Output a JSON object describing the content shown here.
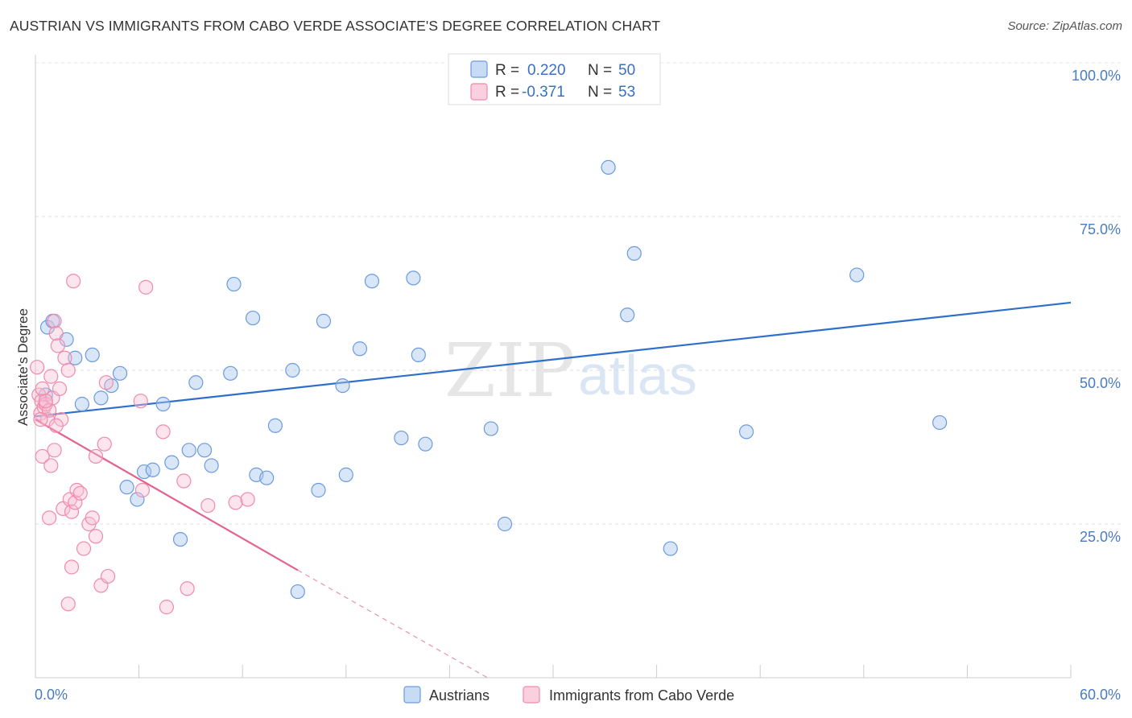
{
  "title": "AUSTRIAN VS IMMIGRANTS FROM CABO VERDE ASSOCIATE'S DEGREE CORRELATION CHART",
  "source": "Source: ZipAtlas.com",
  "watermark": {
    "zip": "ZIP",
    "atlas": "atlas"
  },
  "legend": {
    "r_label": "R =",
    "n_label": "N =",
    "items": [
      {
        "r": "0.220",
        "n": "50"
      },
      {
        "r": "-0.371",
        "n": "53"
      }
    ]
  },
  "chart_data": {
    "type": "scatter",
    "title": "AUSTRIAN VS IMMIGRANTS FROM CABO VERDE ASSOCIATE'S DEGREE CORRELATION CHART",
    "xlabel": "",
    "ylabel": "Associate's Degree",
    "xlim": [
      0,
      60
    ],
    "ylim": [
      0,
      100
    ],
    "x_tick_labels": [
      "0.0%",
      "60.0%"
    ],
    "y_ticks": [
      25,
      50,
      75,
      100
    ],
    "y_tick_labels": [
      "25.0%",
      "50.0%",
      "75.0%",
      "100.0%"
    ],
    "grid": true,
    "legend_position": "bottom",
    "colors": {
      "austrians": "#6a9be0",
      "cabo_verde": "#f08aab",
      "austrians_line": "#2f6fcc",
      "cabo_verde_line": "#e2638e"
    },
    "series": [
      {
        "name": "Austrians",
        "trend": {
          "x": [
            0,
            60
          ],
          "y": [
            42.5,
            61
          ]
        },
        "points": [
          [
            0.6,
            46
          ],
          [
            0.7,
            57
          ],
          [
            1.0,
            58
          ],
          [
            1.8,
            55
          ],
          [
            2.3,
            52
          ],
          [
            2.7,
            44.5
          ],
          [
            3.3,
            52.5
          ],
          [
            3.8,
            45.5
          ],
          [
            4.4,
            47.5
          ],
          [
            4.9,
            49.5
          ],
          [
            5.3,
            31
          ],
          [
            5.9,
            29
          ],
          [
            6.3,
            33.5
          ],
          [
            6.8,
            33.8
          ],
          [
            7.4,
            44.5
          ],
          [
            7.9,
            35
          ],
          [
            8.4,
            22.5
          ],
          [
            8.9,
            37
          ],
          [
            9.3,
            48
          ],
          [
            9.8,
            37
          ],
          [
            10.2,
            34.5
          ],
          [
            11.3,
            49.5
          ],
          [
            11.5,
            64
          ],
          [
            12.6,
            58.5
          ],
          [
            12.8,
            33
          ],
          [
            13.4,
            32.5
          ],
          [
            13.9,
            41
          ],
          [
            14.9,
            50
          ],
          [
            15.2,
            14
          ],
          [
            16.4,
            30.5
          ],
          [
            16.7,
            58
          ],
          [
            17.8,
            47.5
          ],
          [
            18.0,
            33
          ],
          [
            18.8,
            53.5
          ],
          [
            19.5,
            64.5
          ],
          [
            21.2,
            39
          ],
          [
            21.9,
            65
          ],
          [
            22.2,
            52.5
          ],
          [
            22.6,
            38
          ],
          [
            24.4,
            100
          ],
          [
            26.4,
            40.5
          ],
          [
            27.2,
            25
          ],
          [
            28.2,
            100
          ],
          [
            33.2,
            83
          ],
          [
            34.3,
            59
          ],
          [
            34.7,
            69
          ],
          [
            36.8,
            21
          ],
          [
            41.2,
            40
          ],
          [
            47.6,
            65.5
          ],
          [
            52.4,
            41.5
          ]
        ]
      },
      {
        "name": "Immigrants from Cabo Verde",
        "trend": {
          "x": [
            0,
            15.2
          ],
          "y": [
            42,
            17.5
          ],
          "dashed_to": [
            26.2,
            0
          ]
        },
        "points": [
          [
            0.1,
            50.5
          ],
          [
            0.2,
            46
          ],
          [
            0.3,
            43
          ],
          [
            0.35,
            45
          ],
          [
            0.4,
            47
          ],
          [
            0.5,
            44
          ],
          [
            0.6,
            44.5
          ],
          [
            0.7,
            42
          ],
          [
            0.8,
            43.5
          ],
          [
            0.9,
            49
          ],
          [
            1.0,
            45.5
          ],
          [
            1.1,
            58
          ],
          [
            1.2,
            56
          ],
          [
            1.3,
            54
          ],
          [
            1.4,
            47
          ],
          [
            1.5,
            42
          ],
          [
            1.7,
            52
          ],
          [
            1.9,
            50
          ],
          [
            0.4,
            36
          ],
          [
            0.8,
            26
          ],
          [
            1.1,
            37
          ],
          [
            1.2,
            41
          ],
          [
            0.9,
            34.5
          ],
          [
            1.6,
            27.5
          ],
          [
            2.0,
            29
          ],
          [
            2.1,
            27
          ],
          [
            2.3,
            28.5
          ],
          [
            2.4,
            30.5
          ],
          [
            2.6,
            30
          ],
          [
            1.9,
            12
          ],
          [
            2.1,
            18
          ],
          [
            2.2,
            64.5
          ],
          [
            2.8,
            21
          ],
          [
            3.1,
            25
          ],
          [
            3.3,
            26
          ],
          [
            3.5,
            23
          ],
          [
            3.5,
            36
          ],
          [
            3.8,
            15
          ],
          [
            4.0,
            38
          ],
          [
            4.1,
            48
          ],
          [
            4.2,
            16.5
          ],
          [
            6.1,
            45
          ],
          [
            6.2,
            30.5
          ],
          [
            6.4,
            63.5
          ],
          [
            7.4,
            40
          ],
          [
            7.6,
            11.5
          ],
          [
            8.6,
            32
          ],
          [
            8.8,
            14.5
          ],
          [
            10.0,
            28
          ],
          [
            11.6,
            28.5
          ],
          [
            12.3,
            29
          ],
          [
            0.3,
            42
          ],
          [
            0.6,
            45
          ]
        ]
      }
    ]
  },
  "bottom_legend": [
    "Austrians",
    "Immigrants from Cabo Verde"
  ]
}
